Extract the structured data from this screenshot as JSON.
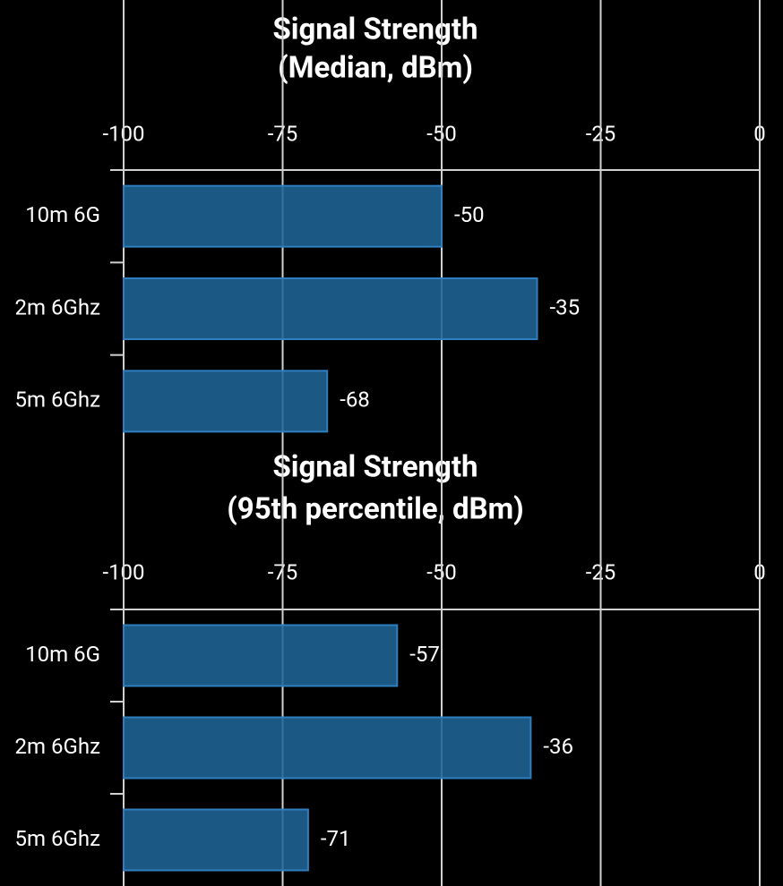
{
  "chart_data": [
    {
      "type": "barh",
      "title": [
        "Signal Strength",
        "(Median, dBm)"
      ],
      "categories": [
        "10m 6G",
        "2m 6Ghz",
        "5m 6Ghz"
      ],
      "values": [
        -50,
        -35,
        -68
      ],
      "color": "#1f6496",
      "xlim": [
        -100,
        0
      ],
      "xticks": [
        -100,
        -75,
        -50,
        -25,
        0
      ],
      "grid": true
    },
    {
      "type": "barh",
      "title": [
        "Signal Strength",
        "(95th percentile, dBm)"
      ],
      "categories": [
        "10m 6G",
        "2m 6Ghz",
        "5m 6Ghz"
      ],
      "values": [
        -57,
        -36,
        -71
      ],
      "color": "#1f6496",
      "xlim": [
        -100,
        0
      ],
      "xticks": [
        -100,
        -75,
        -50,
        -25,
        0
      ],
      "grid": true
    }
  ]
}
